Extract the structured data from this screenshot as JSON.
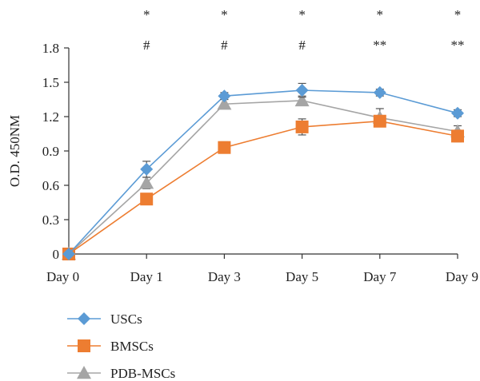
{
  "chart_data": {
    "type": "line",
    "categories": [
      "Day 0",
      "Day 1",
      "Day 3",
      "Day 5",
      "Day 7",
      "Day 9"
    ],
    "ylabel": "O.D. 450NM",
    "xlabel": "",
    "title": "",
    "ylim": [
      0,
      1.8
    ],
    "yticks": [
      "0",
      "0.3",
      "0.6",
      "0.9",
      "1.2",
      "1.5",
      "1.8"
    ],
    "grid": false,
    "legend_position": "bottom-left",
    "series": [
      {
        "name": "USCs",
        "color": "#5b9bd5",
        "marker": "diamond",
        "values": [
          0.0,
          0.74,
          1.38,
          1.43,
          1.41,
          1.23
        ],
        "errors": [
          0.0,
          0.07,
          0.03,
          0.06,
          0.03,
          0.03
        ]
      },
      {
        "name": "BMSCs",
        "color": "#ed7d31",
        "marker": "square",
        "values": [
          0.0,
          0.48,
          0.93,
          1.11,
          1.16,
          1.03
        ],
        "errors": [
          0.0,
          0.03,
          0.05,
          0.07,
          0.04,
          0.05
        ]
      },
      {
        "name": "PDB-MSCs",
        "color": "#a5a5a5",
        "marker": "triangle",
        "values": [
          0.0,
          0.62,
          1.31,
          1.34,
          1.19,
          1.07
        ],
        "errors": [
          0.0,
          0.05,
          0.04,
          0.04,
          0.08,
          0.05
        ]
      }
    ],
    "annotations": {
      "row1": [
        "",
        "*",
        "*",
        "*",
        "*",
        "*"
      ],
      "row2": [
        "",
        "#",
        "#",
        "#",
        "**",
        "**"
      ]
    }
  }
}
